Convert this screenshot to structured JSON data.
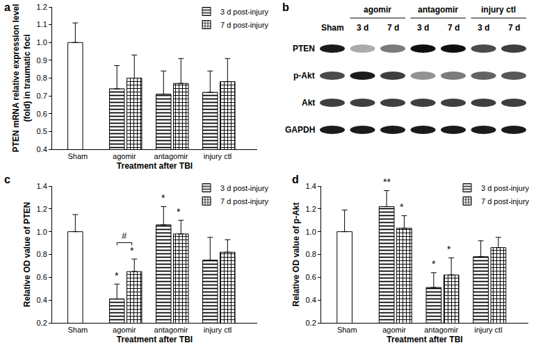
{
  "chart_data": [
    {
      "panel": "a",
      "type": "bar",
      "x_label": "Treatment after TBI",
      "y_label": "PTEN mRNA relative expression level\n(fold) in traumatic foci",
      "categories": [
        "Sham",
        "agomir",
        "antagomir",
        "injury ctl"
      ],
      "series": [
        {
          "color": "#ffffff",
          "values": [
            1.0,
            null,
            null,
            null
          ],
          "errors": [
            0.11,
            null,
            null,
            null
          ]
        },
        {
          "name": "3 d post-injury",
          "marker": "horizontal stripes",
          "color": "#000000",
          "values": [
            null,
            0.74,
            0.71,
            0.72
          ],
          "errors": [
            null,
            0.13,
            0.13,
            0.12
          ]
        },
        {
          "name": "7 d post-injury",
          "marker": "checkered",
          "color": "#000000",
          "values": [
            null,
            0.8,
            0.77,
            0.78
          ],
          "errors": [
            null,
            0.13,
            0.14,
            0.13
          ]
        }
      ],
      "ylim": [
        0.4,
        1.2
      ],
      "yticks": [
        0.4,
        0.5,
        0.6,
        0.7,
        0.8,
        0.9,
        {
          "value": 1,
          "label": "1.0"
        },
        1.1,
        1.2
      ],
      "grid": false,
      "legend": "upper right"
    },
    {
      "panel": "c",
      "type": "bar",
      "x_label": "Treatment after TBI",
      "y_label": "Relative OD value of PTEN",
      "categories": [
        "Sham",
        "agomir",
        "antagomir",
        "injury ctl"
      ],
      "series": [
        {
          "color": "#ffffff",
          "values": [
            1.0,
            null,
            null,
            null
          ],
          "errors": [
            0.15,
            null,
            null,
            null
          ]
        },
        {
          "name": "3 d post-injury",
          "marker": "horizontal stripes",
          "color": "#000000",
          "values": [
            null,
            0.41,
            1.06,
            0.75
          ],
          "errors": [
            null,
            0.13,
            0.16,
            0.2
          ],
          "significance": [
            null,
            "*",
            "*",
            null
          ]
        },
        {
          "name": "7 d post-injury",
          "marker": "checkered",
          "color": "#000000",
          "values": [
            null,
            0.65,
            0.98,
            0.82
          ],
          "errors": [
            null,
            0.11,
            0.12,
            0.11
          ],
          "significance": [
            null,
            "*",
            "*",
            null
          ]
        }
      ],
      "brackets": [
        {
          "category": "agomir",
          "label": "#"
        }
      ],
      "ylim": [
        0.2,
        1.4
      ],
      "yticks": [
        0.2,
        0.4,
        0.6,
        0.8,
        {
          "value": 1,
          "label": "1.0"
        },
        1.2,
        1.4
      ],
      "grid": false,
      "legend": "upper right"
    },
    {
      "panel": "d",
      "type": "bar",
      "x_label": "Treatment after TBI",
      "y_label": "Relative OD value of p-Akt",
      "categories": [
        "Sham",
        "agomir",
        "antagomir",
        "injury ctl"
      ],
      "series": [
        {
          "color": "#ffffff",
          "values": [
            1.0,
            null,
            null,
            null
          ],
          "errors": [
            0.19,
            null,
            null,
            null
          ]
        },
        {
          "name": "3 d post-injury",
          "marker": "horizontal stripes",
          "color": "#000000",
          "values": [
            null,
            1.22,
            0.51,
            0.78
          ],
          "errors": [
            null,
            0.14,
            0.13,
            0.14
          ],
          "significance": [
            null,
            "**",
            "*",
            null
          ]
        },
        {
          "name": "7 d post-injury",
          "marker": "checkered",
          "color": "#000000",
          "values": [
            null,
            1.03,
            0.62,
            0.86
          ],
          "errors": [
            null,
            0.11,
            0.15,
            0.09
          ],
          "significance": [
            null,
            "*",
            "*",
            null
          ]
        }
      ],
      "ylim": [
        0.2,
        1.4
      ],
      "yticks": [
        0.2,
        0.4,
        0.6,
        0.8,
        {
          "value": 1,
          "label": "1.0"
        },
        1.2,
        1.4
      ],
      "grid": false,
      "legend": "upper right"
    }
  ],
  "blot": {
    "panel": "b",
    "lanes": [
      {
        "label": "Sham"
      },
      {
        "group": "agomir",
        "label": "3 d"
      },
      {
        "group": "agomir",
        "label": "7 d"
      },
      {
        "group": "antagomir",
        "label": "3 d"
      },
      {
        "group": "antagomir",
        "label": "7 d"
      },
      {
        "group": "injury ctl",
        "label": "3 d"
      },
      {
        "group": "injury ctl",
        "label": "7 d"
      }
    ],
    "rows": [
      {
        "label": "PTEN",
        "intensity": [
          0.95,
          0.35,
          0.55,
          1.0,
          1.0,
          0.75,
          0.8
        ]
      },
      {
        "label": "p-Akt",
        "intensity": [
          0.75,
          0.95,
          0.8,
          0.45,
          0.55,
          0.65,
          0.7
        ]
      },
      {
        "label": "Akt",
        "intensity": [
          0.8,
          0.8,
          0.8,
          0.8,
          0.8,
          0.8,
          0.8
        ]
      },
      {
        "label": "GAPDH",
        "intensity": [
          0.95,
          0.95,
          0.95,
          0.95,
          0.95,
          0.95,
          0.95
        ]
      }
    ]
  }
}
